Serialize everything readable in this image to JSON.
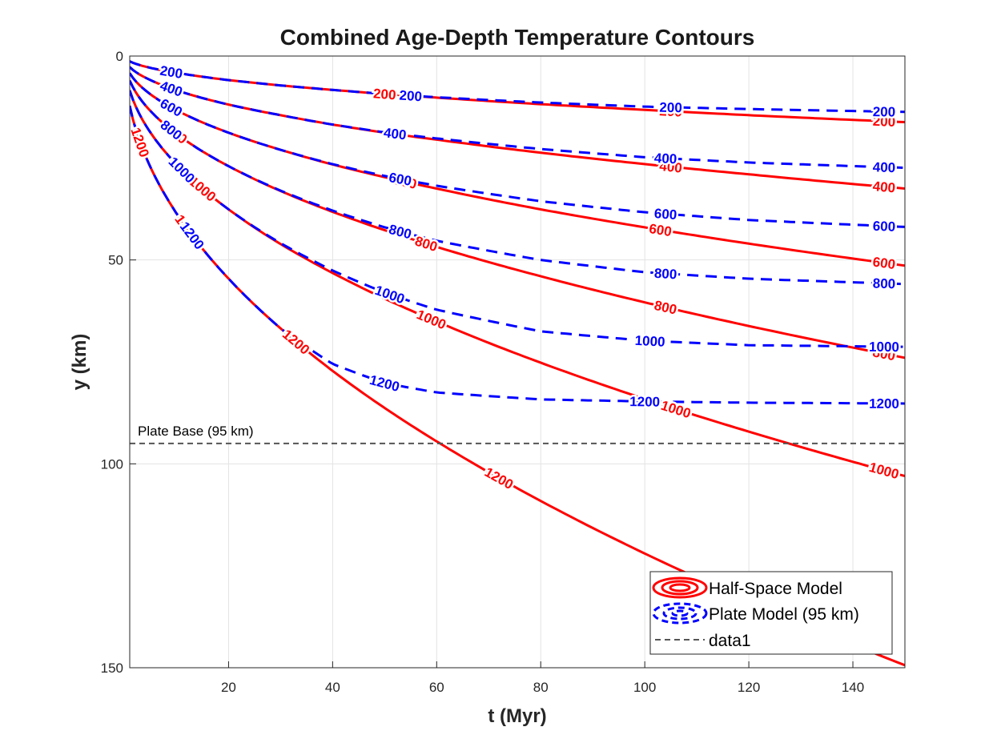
{
  "chart_data": {
    "type": "line",
    "title": "Combined Age-Depth Temperature Contours",
    "xlabel": "t (Myr)",
    "ylabel": "y (km)",
    "xlim": [
      1,
      150
    ],
    "ylim": [
      0,
      150
    ],
    "y_reversed": true,
    "xticks": [
      20,
      40,
      60,
      80,
      100,
      120,
      140
    ],
    "yticks": [
      0,
      50,
      100,
      150
    ],
    "grid": true,
    "plate_base": {
      "y": 95,
      "label": "Plate Base (95 km)",
      "color": "#555555"
    },
    "levels": [
      200,
      400,
      600,
      800,
      1000,
      1200
    ],
    "series": [
      {
        "name": "Half-Space Model",
        "style": "solid",
        "color": "#ff0000",
        "contours": [
          {
            "level": 200,
            "label_x": [
              50,
              105,
              146
            ],
            "points": [
              [
                1,
                1.3
              ],
              [
                5,
                2.9
              ],
              [
                10,
                4.1
              ],
              [
                20,
                5.9
              ],
              [
                30,
                7.2
              ],
              [
                40,
                8.3
              ],
              [
                50,
                9.3
              ],
              [
                60,
                10.2
              ],
              [
                80,
                11.8
              ],
              [
                100,
                13.2
              ],
              [
                120,
                14.5
              ],
              [
                150,
                16.2
              ]
            ]
          },
          {
            "level": 400,
            "label_x": [
              52,
              105,
              146
            ],
            "points": [
              [
                1,
                2.7
              ],
              [
                5,
                5.9
              ],
              [
                10,
                8.4
              ],
              [
                20,
                11.9
              ],
              [
                30,
                14.5
              ],
              [
                40,
                16.8
              ],
              [
                50,
                18.8
              ],
              [
                60,
                20.5
              ],
              [
                80,
                23.7
              ],
              [
                100,
                26.5
              ],
              [
                120,
                29.0
              ],
              [
                150,
                32.5
              ]
            ]
          },
          {
            "level": 600,
            "label_x": [
              54,
              103,
              146
            ],
            "points": [
              [
                1,
                4.2
              ],
              [
                5,
                9.4
              ],
              [
                10,
                13.3
              ],
              [
                20,
                18.8
              ],
              [
                30,
                23.0
              ],
              [
                40,
                26.6
              ],
              [
                50,
                29.7
              ],
              [
                60,
                32.5
              ],
              [
                80,
                37.6
              ],
              [
                100,
                42.0
              ],
              [
                120,
                46.0
              ],
              [
                150,
                51.4
              ]
            ]
          },
          {
            "level": 800,
            "label_x": [
              10,
              58,
              104,
              146
            ],
            "points": [
              [
                1,
                6.0
              ],
              [
                5,
                13.5
              ],
              [
                10,
                19.1
              ],
              [
                20,
                27.0
              ],
              [
                30,
                33.1
              ],
              [
                40,
                38.2
              ],
              [
                50,
                42.7
              ],
              [
                60,
                46.8
              ],
              [
                80,
                54.0
              ],
              [
                100,
                60.4
              ],
              [
                120,
                66.2
              ],
              [
                150,
                74.0
              ]
            ]
          },
          {
            "level": 1000,
            "label_x": [
              15,
              59,
              106,
              146
            ],
            "points": [
              [
                1,
                8.4
              ],
              [
                5,
                18.8
              ],
              [
                10,
                26.6
              ],
              [
                20,
                37.6
              ],
              [
                30,
                46.1
              ],
              [
                40,
                53.2
              ],
              [
                50,
                59.5
              ],
              [
                60,
                65.1
              ],
              [
                80,
                75.2
              ],
              [
                100,
                84.1
              ],
              [
                120,
                92.1
              ],
              [
                150,
                103.0
              ]
            ]
          },
          {
            "level": 1200,
            "label_x": [
              3,
              12,
              33,
              72,
              117
            ],
            "points": [
              [
                1,
                12.2
              ],
              [
                5,
                27.3
              ],
              [
                10,
                38.6
              ],
              [
                20,
                54.6
              ],
              [
                30,
                66.8
              ],
              [
                40,
                77.2
              ],
              [
                50,
                86.3
              ],
              [
                60,
                94.5
              ],
              [
                80,
                109.1
              ],
              [
                100,
                122.0
              ],
              [
                120,
                133.6
              ],
              [
                150,
                149.4
              ]
            ]
          }
        ]
      },
      {
        "name": "Plate Model (95 km)",
        "style": "dashed",
        "color": "#0000ff",
        "contours": [
          {
            "level": 200,
            "label_x": [
              9,
              55,
              105,
              146
            ],
            "points": [
              [
                1,
                1.3
              ],
              [
                5,
                2.9
              ],
              [
                10,
                4.1
              ],
              [
                20,
                5.9
              ],
              [
                30,
                7.2
              ],
              [
                40,
                8.3
              ],
              [
                50,
                9.3
              ],
              [
                60,
                10.1
              ],
              [
                80,
                11.4
              ],
              [
                100,
                12.4
              ],
              [
                120,
                13.0
              ],
              [
                150,
                13.7
              ]
            ]
          },
          {
            "level": 400,
            "label_x": [
              9,
              52,
              104,
              146
            ],
            "points": [
              [
                1,
                2.7
              ],
              [
                5,
                5.9
              ],
              [
                10,
                8.4
              ],
              [
                20,
                11.9
              ],
              [
                30,
                14.5
              ],
              [
                40,
                16.8
              ],
              [
                50,
                18.7
              ],
              [
                60,
                20.2
              ],
              [
                80,
                22.8
              ],
              [
                100,
                24.8
              ],
              [
                120,
                26.1
              ],
              [
                150,
                27.4
              ]
            ]
          },
          {
            "level": 600,
            "label_x": [
              9,
              53,
              104,
              146
            ],
            "points": [
              [
                1,
                4.2
              ],
              [
                5,
                9.4
              ],
              [
                10,
                13.3
              ],
              [
                20,
                18.8
              ],
              [
                30,
                23.0
              ],
              [
                40,
                26.5
              ],
              [
                50,
                29.4
              ],
              [
                60,
                31.8
              ],
              [
                80,
                35.6
              ],
              [
                100,
                38.3
              ],
              [
                120,
                40.2
              ],
              [
                150,
                41.9
              ]
            ]
          },
          {
            "level": 800,
            "label_x": [
              9,
              53,
              104,
              146
            ],
            "points": [
              [
                1,
                6.0
              ],
              [
                5,
                13.5
              ],
              [
                10,
                19.1
              ],
              [
                20,
                27.0
              ],
              [
                30,
                33.0
              ],
              [
                40,
                37.9
              ],
              [
                50,
                42.0
              ],
              [
                60,
                45.3
              ],
              [
                80,
                50.0
              ],
              [
                100,
                53.0
              ],
              [
                120,
                54.6
              ],
              [
                150,
                55.9
              ]
            ]
          },
          {
            "level": 1000,
            "label_x": [
              11,
              51,
              101,
              146
            ],
            "points": [
              [
                1,
                8.4
              ],
              [
                5,
                18.8
              ],
              [
                10,
                26.6
              ],
              [
                20,
                37.6
              ],
              [
                30,
                45.9
              ],
              [
                40,
                52.6
              ],
              [
                50,
                58.0
              ],
              [
                60,
                62.2
              ],
              [
                80,
                67.5
              ],
              [
                100,
                69.8
              ],
              [
                120,
                70.9
              ],
              [
                150,
                71.3
              ]
            ]
          },
          {
            "level": 1200,
            "label_x": [
              13,
              50,
              100,
              146
            ],
            "points": [
              [
                1,
                12.2
              ],
              [
                5,
                27.3
              ],
              [
                10,
                38.6
              ],
              [
                20,
                54.6
              ],
              [
                30,
                66.8
              ],
              [
                40,
                75.5
              ],
              [
                50,
                80.2
              ],
              [
                60,
                82.5
              ],
              [
                80,
                84.2
              ],
              [
                100,
                84.7
              ],
              [
                120,
                85.0
              ],
              [
                150,
                85.2
              ]
            ]
          }
        ]
      }
    ],
    "legend": {
      "position": "bottom-right",
      "entries": [
        "Half-Space Model",
        "Plate Model (95 km)",
        "data1"
      ]
    }
  }
}
